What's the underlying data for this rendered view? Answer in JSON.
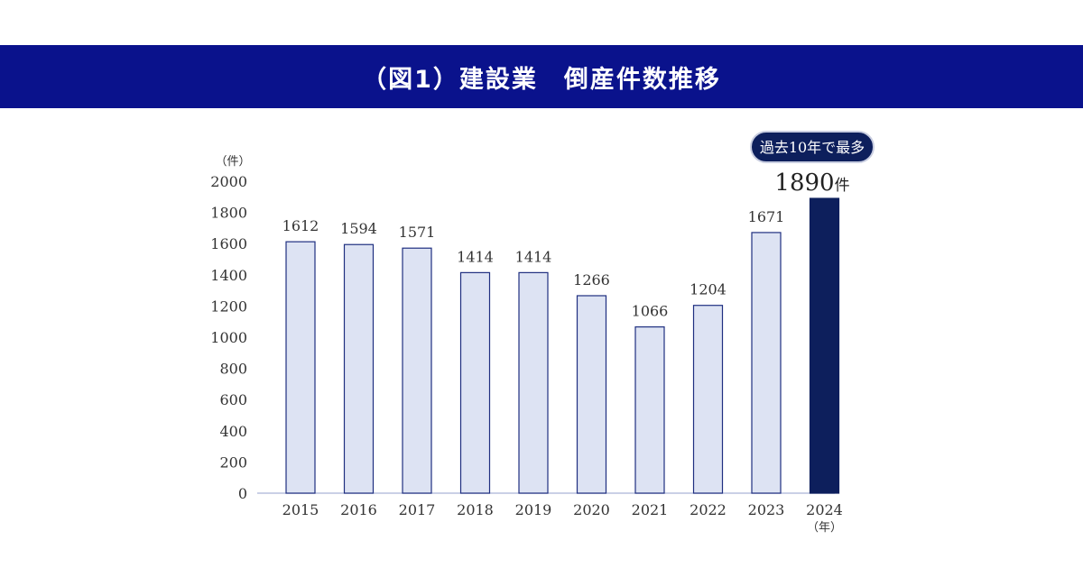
{
  "chart_data": {
    "type": "bar",
    "title": "（図1）建設業　倒産件数推移",
    "ylabel": "（件）",
    "xlabel": "（年）",
    "ylim": [
      0,
      2000
    ],
    "yticks": [
      0,
      200,
      400,
      600,
      800,
      1000,
      1200,
      1400,
      1600,
      1800,
      2000
    ],
    "categories": [
      "2015",
      "2016",
      "2017",
      "2018",
      "2019",
      "2020",
      "2021",
      "2022",
      "2023",
      "2024"
    ],
    "values": [
      1612,
      1594,
      1571,
      1414,
      1414,
      1266,
      1066,
      1204,
      1671,
      1890
    ],
    "highlight": {
      "index": 9,
      "badge": "過去10年で最多",
      "label_value": "1890",
      "label_unit": "件"
    },
    "colors": {
      "bar": "#dde3f3",
      "bar_stroke": "#1f2f80",
      "highlight": "#0d1f5c",
      "banner": "#0a128c"
    }
  }
}
